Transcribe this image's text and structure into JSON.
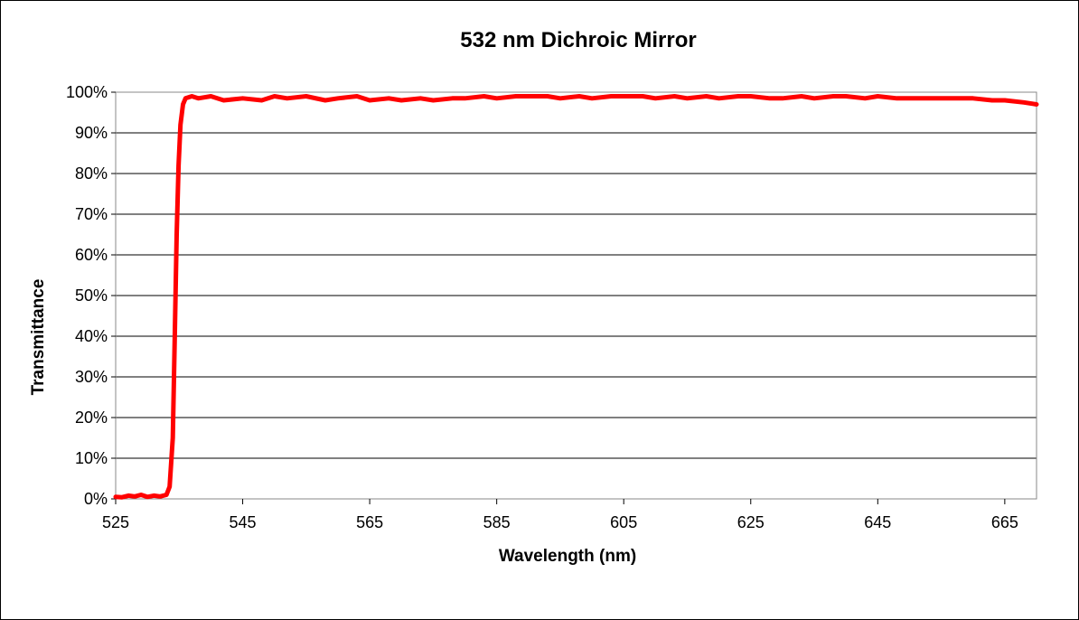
{
  "chart_data": {
    "type": "line",
    "title": "532 nm Dichroic Mirror",
    "xlabel": "Wavelength (nm)",
    "ylabel": "Transmittance",
    "xlim": [
      525,
      670
    ],
    "ylim": [
      0,
      1
    ],
    "x_ticks": [
      525,
      545,
      565,
      585,
      605,
      625,
      645,
      665
    ],
    "x_tick_labels": [
      "525",
      "545",
      "565",
      "585",
      "605",
      "625",
      "645",
      "665"
    ],
    "y_ticks": [
      0,
      0.1,
      0.2,
      0.3,
      0.4,
      0.5,
      0.6,
      0.7,
      0.8,
      0.9,
      1.0
    ],
    "y_tick_labels": [
      "0%",
      "10%",
      "20%",
      "30%",
      "40%",
      "50%",
      "60%",
      "70%",
      "80%",
      "90%",
      "100%"
    ],
    "grid": "horizontal",
    "legend": "none",
    "series": [
      {
        "color": "#ff0000",
        "x": [
          525,
          526,
          527,
          528,
          529,
          530,
          531,
          532,
          533,
          533.5,
          534,
          534.3,
          534.6,
          534.9,
          535.2,
          535.6,
          536,
          537,
          538,
          540,
          542,
          545,
          548,
          550,
          552,
          555,
          558,
          560,
          563,
          565,
          568,
          570,
          573,
          575,
          578,
          580,
          583,
          585,
          588,
          590,
          593,
          595,
          598,
          600,
          603,
          605,
          608,
          610,
          613,
          615,
          618,
          620,
          623,
          625,
          628,
          630,
          633,
          635,
          638,
          640,
          643,
          645,
          648,
          650,
          653,
          655,
          658,
          660,
          663,
          665,
          668,
          670
        ],
        "y": [
          0.005,
          0.004,
          0.008,
          0.006,
          0.01,
          0.005,
          0.008,
          0.006,
          0.01,
          0.03,
          0.15,
          0.4,
          0.65,
          0.82,
          0.92,
          0.97,
          0.985,
          0.99,
          0.985,
          0.99,
          0.98,
          0.985,
          0.98,
          0.99,
          0.985,
          0.99,
          0.98,
          0.985,
          0.99,
          0.98,
          0.985,
          0.98,
          0.985,
          0.98,
          0.985,
          0.985,
          0.99,
          0.985,
          0.99,
          0.99,
          0.99,
          0.985,
          0.99,
          0.985,
          0.99,
          0.99,
          0.99,
          0.985,
          0.99,
          0.985,
          0.99,
          0.985,
          0.99,
          0.99,
          0.985,
          0.985,
          0.99,
          0.985,
          0.99,
          0.99,
          0.985,
          0.99,
          0.985,
          0.985,
          0.985,
          0.985,
          0.985,
          0.985,
          0.98,
          0.98,
          0.975,
          0.97
        ]
      }
    ]
  }
}
